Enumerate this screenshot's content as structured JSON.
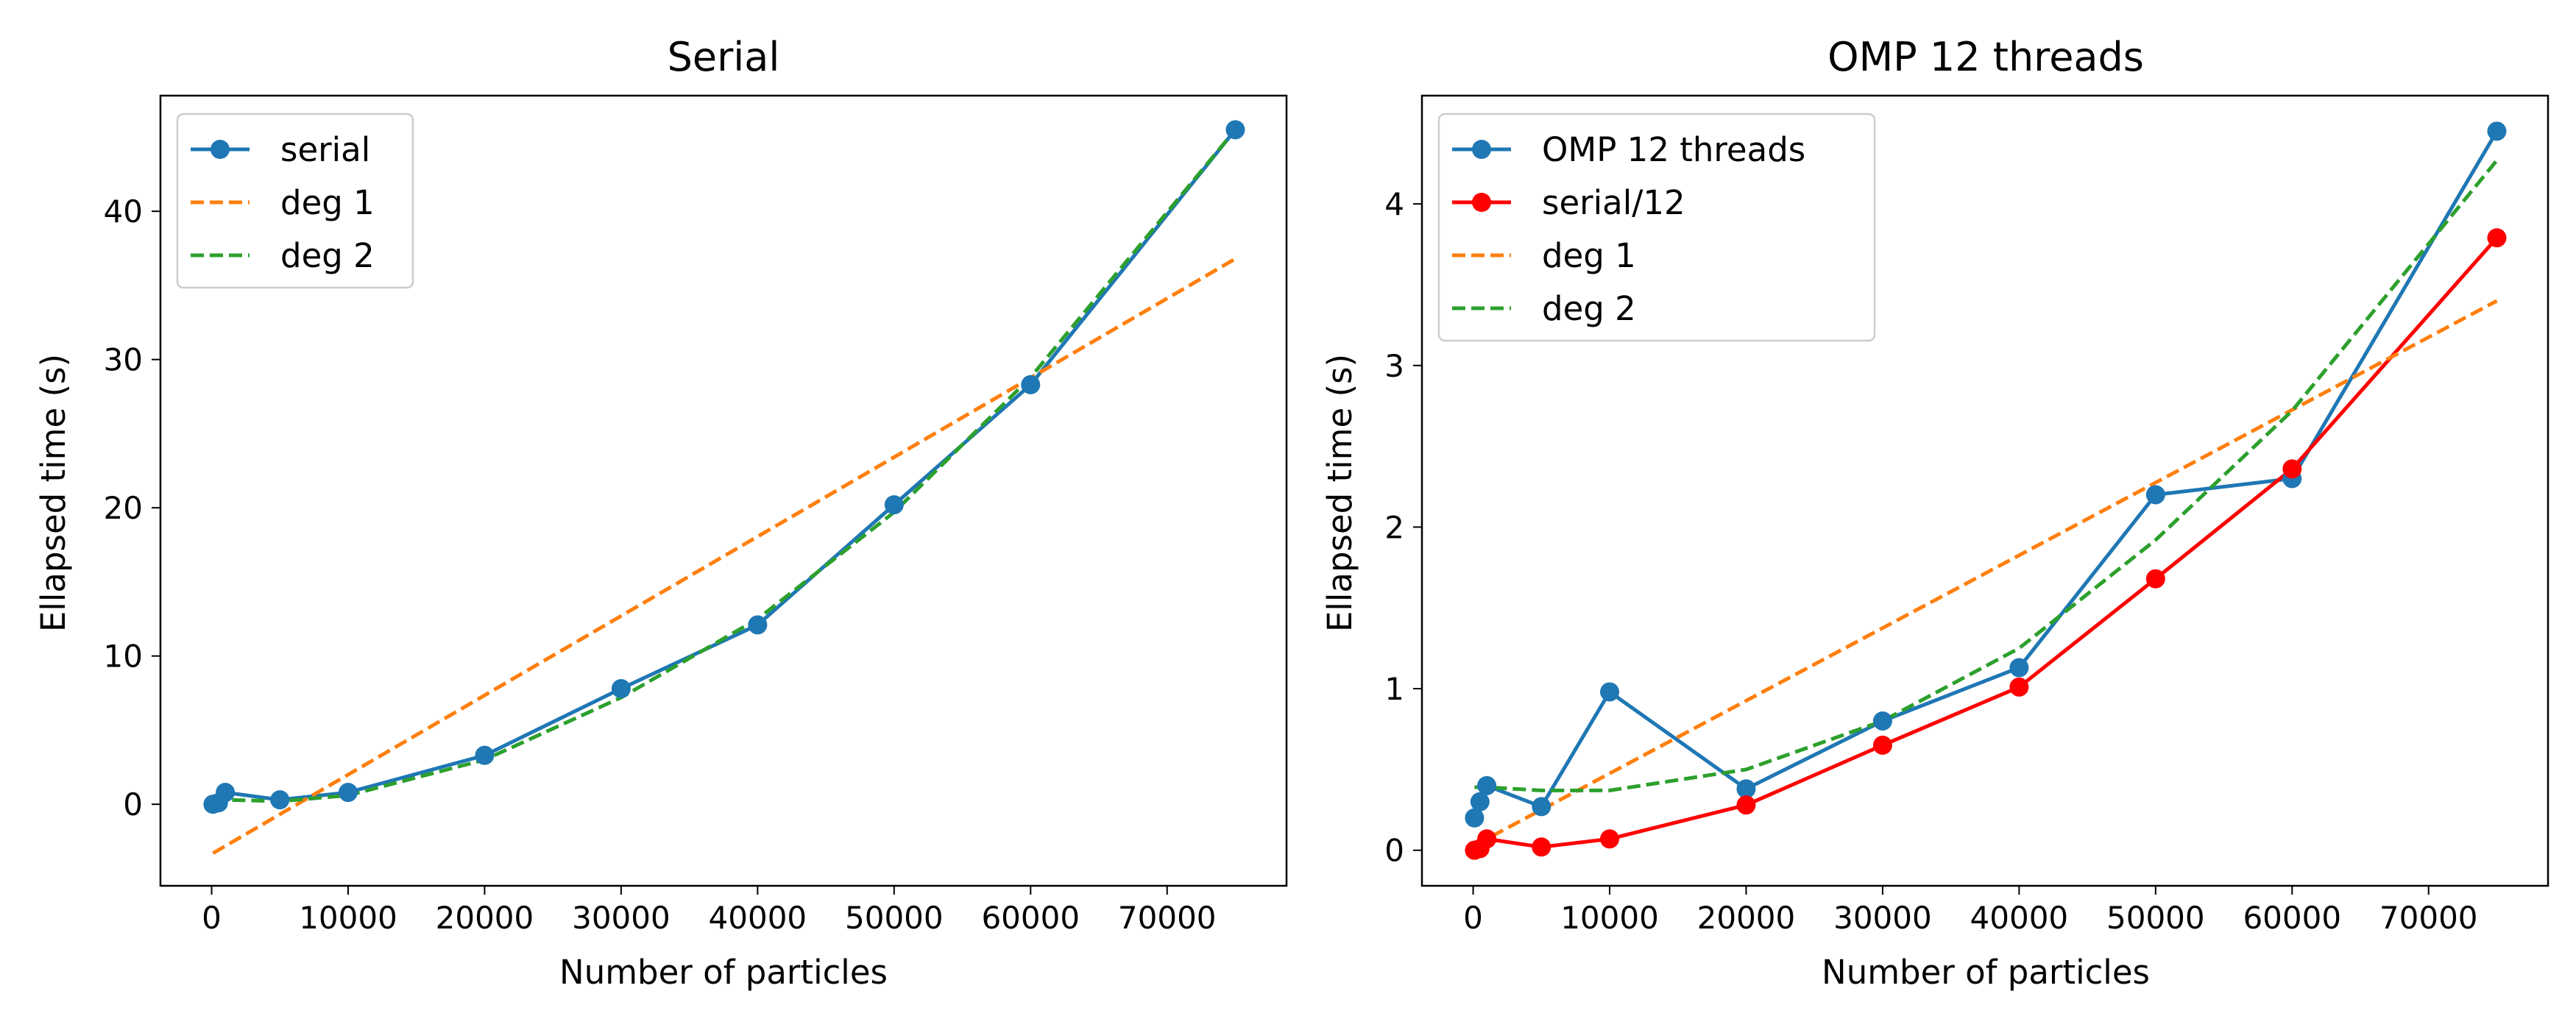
{
  "chart_data": [
    {
      "type": "line",
      "title": "Serial",
      "xlabel": "Number of particles",
      "ylabel": "Ellapsed time (s)",
      "xlim": [
        -3750,
        78750
      ],
      "ylim": [
        -5.5,
        47.8
      ],
      "xticks": [
        0,
        10000,
        20000,
        30000,
        40000,
        50000,
        60000,
        70000
      ],
      "xtick_labels": [
        "0",
        "10000",
        "20000",
        "30000",
        "40000",
        "50000",
        "60000",
        "70000"
      ],
      "yticks": [
        0,
        10,
        20,
        30,
        40
      ],
      "ytick_labels": [
        "0",
        "10",
        "20",
        "30",
        "40"
      ],
      "grid": false,
      "legend_position": "top-left",
      "series": [
        {
          "name": "serial",
          "style": "solid",
          "marker": "circle",
          "color": "#1f77b4",
          "x": [
            100,
            500,
            1000,
            5000,
            10000,
            20000,
            30000,
            40000,
            50000,
            60000,
            75000
          ],
          "y": [
            0.0,
            0.1,
            0.8,
            0.3,
            0.8,
            3.3,
            7.8,
            12.1,
            20.2,
            28.3,
            45.5
          ]
        },
        {
          "name": "deg 1",
          "style": "dashed",
          "color": "#ff7f0e",
          "x": [
            100,
            75000
          ],
          "y": [
            -3.3,
            36.8
          ]
        },
        {
          "name": "deg 2",
          "style": "dashed",
          "color": "#2ca02c",
          "x": [
            100,
            500,
            1000,
            5000,
            10000,
            20000,
            30000,
            40000,
            50000,
            60000,
            75000
          ],
          "y": [
            0.3,
            0.3,
            0.3,
            0.2,
            0.6,
            3.0,
            7.2,
            12.5,
            19.7,
            28.8,
            45.5
          ]
        }
      ]
    },
    {
      "type": "line",
      "title": "OMP 12 threads",
      "xlabel": "Number of particles",
      "ylabel": "Ellapsed time (s)",
      "xlim": [
        -3750,
        78750
      ],
      "ylim": [
        -0.22,
        4.67
      ],
      "xticks": [
        0,
        10000,
        20000,
        30000,
        40000,
        50000,
        60000,
        70000
      ],
      "xtick_labels": [
        "0",
        "10000",
        "20000",
        "30000",
        "40000",
        "50000",
        "60000",
        "70000"
      ],
      "yticks": [
        0,
        1,
        2,
        3,
        4
      ],
      "ytick_labels": [
        "0",
        "1",
        "2",
        "3",
        "4"
      ],
      "grid": false,
      "legend_position": "top-left",
      "series": [
        {
          "name": "OMP 12 threads",
          "style": "solid",
          "marker": "circle",
          "color": "#1f77b4",
          "x": [
            100,
            500,
            1000,
            5000,
            10000,
            20000,
            30000,
            40000,
            50000,
            60000,
            75000
          ],
          "y": [
            0.2,
            0.3,
            0.4,
            0.27,
            0.98,
            0.38,
            0.8,
            1.13,
            2.2,
            2.3,
            4.45
          ]
        },
        {
          "name": "serial/12",
          "style": "solid",
          "marker": "circle",
          "color": "#ff0000",
          "x": [
            100,
            500,
            1000,
            5000,
            10000,
            20000,
            30000,
            40000,
            50000,
            60000,
            75000
          ],
          "y": [
            0.0,
            0.01,
            0.07,
            0.02,
            0.07,
            0.28,
            0.65,
            1.01,
            1.68,
            2.36,
            3.79
          ]
        },
        {
          "name": "deg 1",
          "style": "dashed",
          "color": "#ff7f0e",
          "x": [
            100,
            75000
          ],
          "y": [
            0.03,
            3.4
          ]
        },
        {
          "name": "deg 2",
          "style": "dashed",
          "color": "#2ca02c",
          "x": [
            100,
            500,
            1000,
            5000,
            10000,
            20000,
            30000,
            40000,
            50000,
            60000,
            75000
          ],
          "y": [
            0.39,
            0.39,
            0.39,
            0.37,
            0.37,
            0.5,
            0.8,
            1.25,
            1.92,
            2.72,
            4.27
          ]
        }
      ]
    }
  ]
}
